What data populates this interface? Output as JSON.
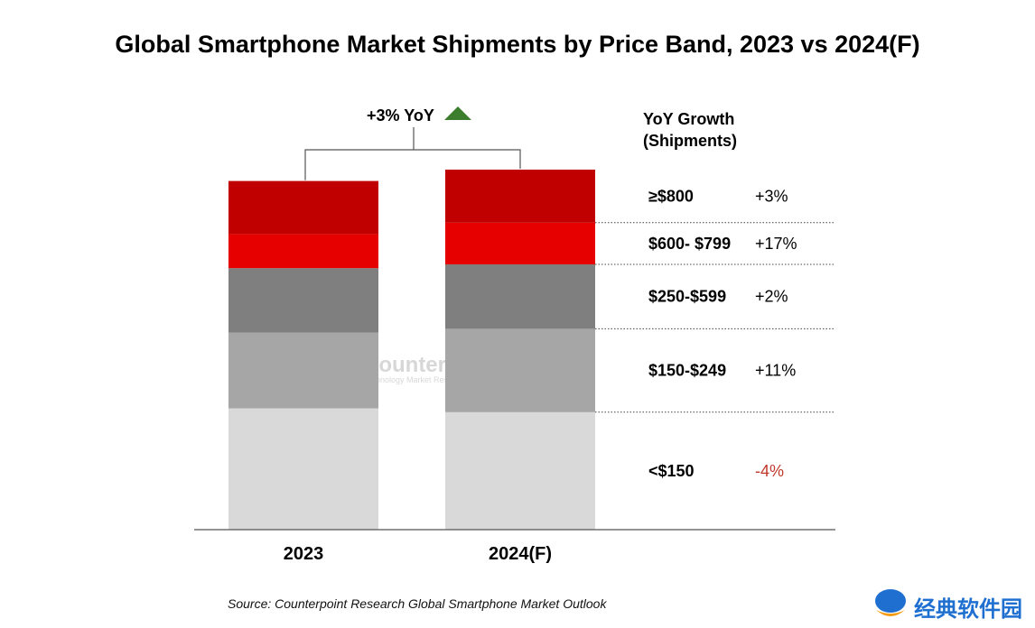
{
  "chart_data": {
    "type": "bar",
    "stacked": true,
    "title": "Global Smartphone Market Shipments by Price Band, 2023 vs 2024(F)",
    "categories": [
      "2023",
      "2024(F)"
    ],
    "total_yoy_label": "+3% YoY",
    "legend_header": [
      "YoY Growth",
      "(Shipments)"
    ],
    "series": [
      {
        "name": "<$150",
        "growth": "-4%",
        "color": "#d9d9d9",
        "values": [
          32,
          31
        ]
      },
      {
        "name": "$150-$249",
        "growth": "+11%",
        "color": "#a6a6a6",
        "values": [
          20,
          22
        ]
      },
      {
        "name": "$250-$599",
        "growth": "+2%",
        "color": "#7f7f7f",
        "values": [
          17,
          17
        ]
      },
      {
        "name": "$600- $799",
        "growth": "+17%",
        "color": "#e60000",
        "values": [
          9,
          11
        ]
      },
      {
        "name": "≥$800",
        "growth": "+3%",
        "color": "#c00000",
        "values": [
          14,
          14
        ]
      }
    ],
    "growth_colors": {
      "positive": "#000000",
      "negative": "#c0392b"
    },
    "yoy_arrow_color": "#3c7d2e",
    "grid": false
  },
  "watermark": {
    "name": "Counterpoint",
    "tagline": "Technology Market Research"
  },
  "source": "Source: Counterpoint Research Global Smartphone Market Outlook",
  "site_badge": {
    "name": "经典软件园"
  }
}
